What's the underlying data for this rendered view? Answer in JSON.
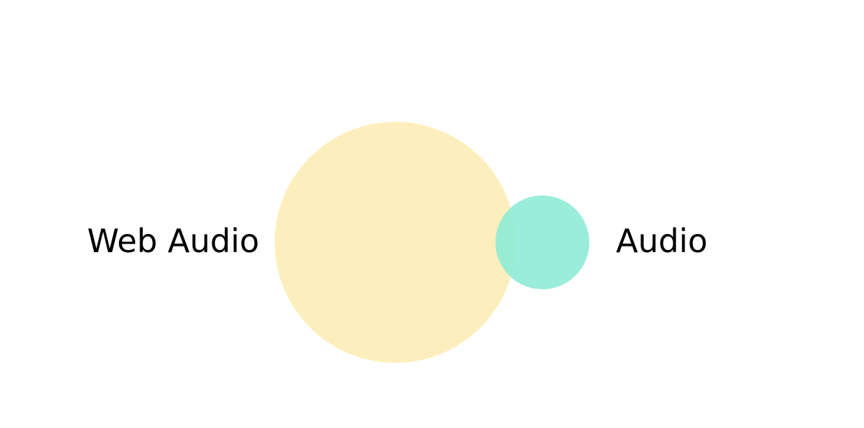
{
  "diagram": {
    "type": "venn",
    "sets": [
      {
        "label": "Web Audio",
        "color": "#fdeeb9",
        "opacity": 0.95
      },
      {
        "label": "Audio",
        "color": "#8eebd6",
        "opacity": 0.9
      }
    ]
  }
}
